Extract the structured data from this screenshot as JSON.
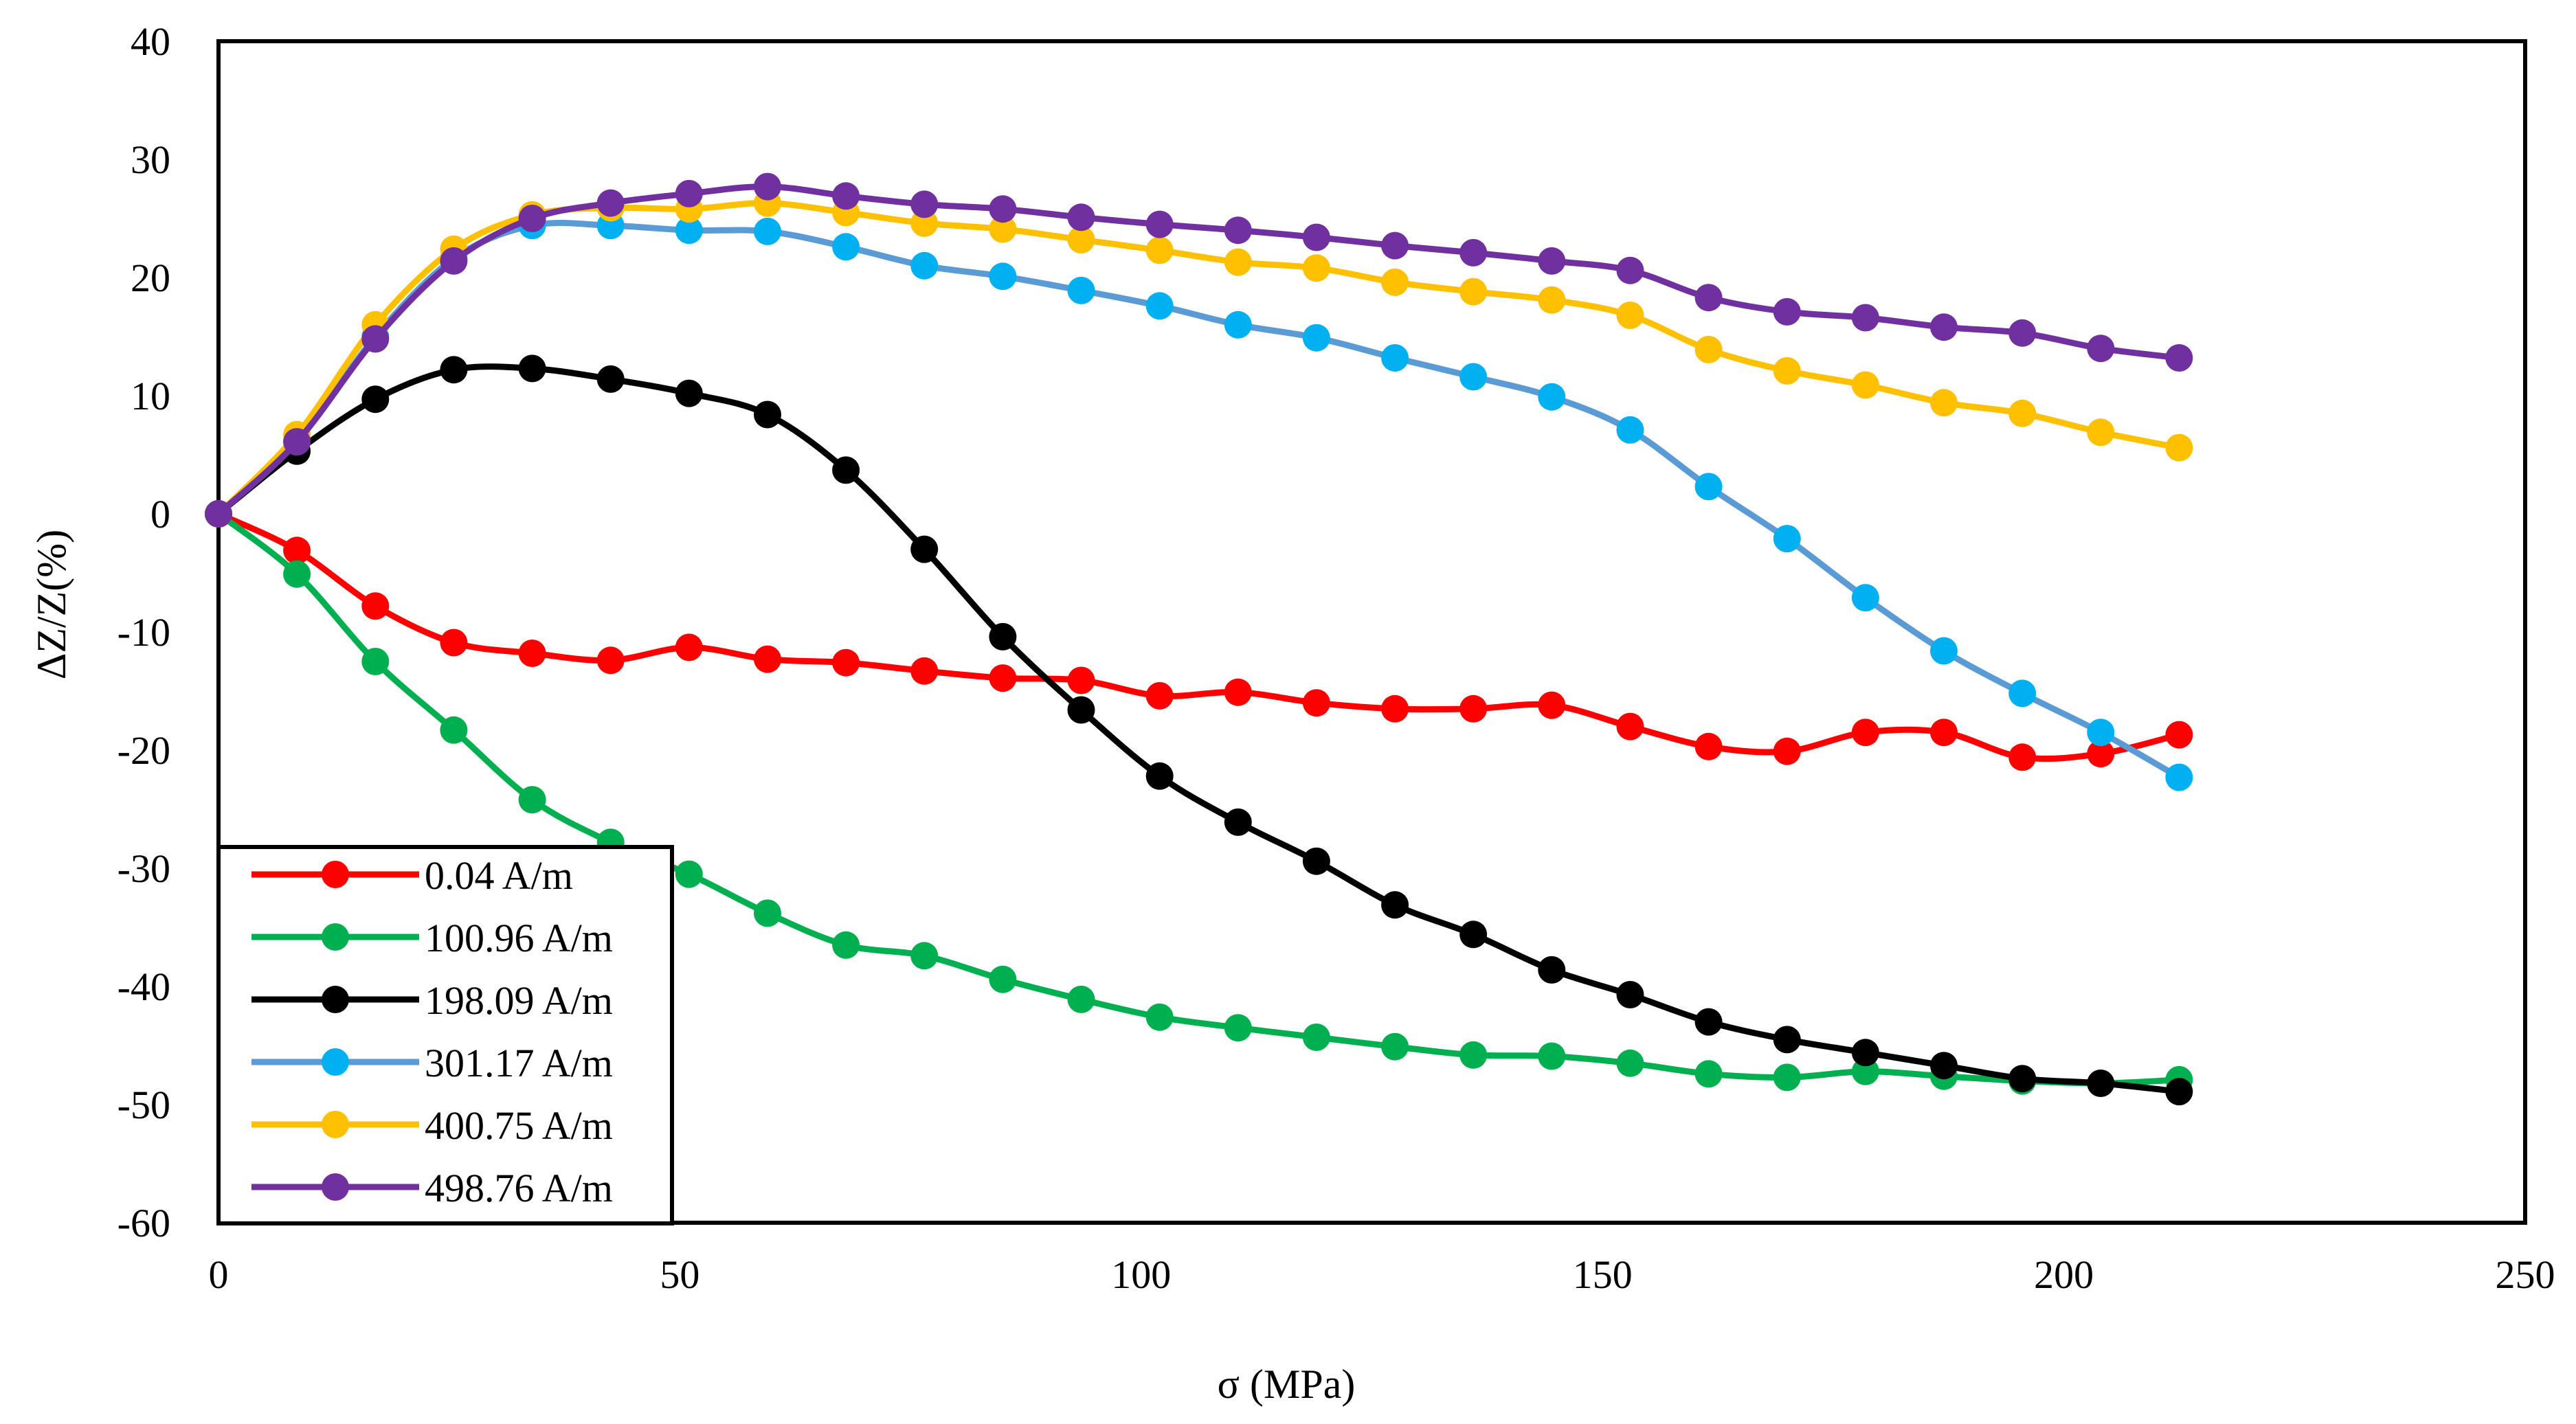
{
  "chart_data": {
    "type": "line",
    "title": "",
    "xlabel": "σ (MPa)",
    "ylabel": "ΔZ/Z(%)",
    "xlim": [
      0,
      250
    ],
    "ylim": [
      -60,
      40
    ],
    "xticks": [
      0,
      50,
      100,
      150,
      200,
      250
    ],
    "yticks": [
      -60,
      -50,
      -40,
      -30,
      -20,
      -10,
      0,
      10,
      20,
      30,
      40
    ],
    "grid": false,
    "legend_position": "bottom-left",
    "x": [
      0,
      8.5,
      17,
      25.5,
      34,
      42.5,
      51,
      59.5,
      68,
      76.5,
      85,
      93.5,
      102,
      110.5,
      119,
      127.5,
      136,
      144.5,
      153,
      161.5,
      170,
      178.5,
      187,
      195.5,
      204,
      212.5
    ],
    "series": [
      {
        "name": "0.04 A/m",
        "color": "#ff0000",
        "line_color": "#ff0000",
        "values": [
          0,
          -3.1,
          -7.8,
          -10.9,
          -11.8,
          -12.4,
          -11.3,
          -12.3,
          -12.6,
          -13.3,
          -13.9,
          -14.1,
          -15.4,
          -15.1,
          -16.0,
          -16.5,
          -16.5,
          -16.2,
          -18.0,
          -19.7,
          -20.1,
          -18.5,
          -18.5,
          -20.6,
          -20.3,
          -18.7
        ]
      },
      {
        "name": "100.96 A/m",
        "color": "#00b050",
        "line_color": "#00b050",
        "values": [
          0,
          -5.1,
          -12.5,
          -18.3,
          -24.2,
          -27.8,
          -30.5,
          -33.8,
          -36.5,
          -37.4,
          -39.4,
          -41.1,
          -42.6,
          -43.5,
          -44.3,
          -45.1,
          -45.8,
          -45.9,
          -46.5,
          -47.4,
          -47.7,
          -47.2,
          -47.6,
          -48.0,
          -48.2,
          -47.9
        ]
      },
      {
        "name": "198.09 A/m",
        "color": "#000000",
        "line_color": "#000000",
        "values": [
          0,
          5.3,
          9.7,
          12.2,
          12.3,
          11.4,
          10.2,
          8.4,
          3.7,
          -3.0,
          -10.4,
          -16.6,
          -22.2,
          -26.1,
          -29.4,
          -33.1,
          -35.6,
          -38.6,
          -40.7,
          -43.0,
          -44.5,
          -45.6,
          -46.7,
          -47.8,
          -48.2,
          -48.9
        ]
      },
      {
        "name": "301.17 A/m",
        "color": "#00b0f0",
        "line_color": "#5b9bd5",
        "values": [
          0,
          6.1,
          15.0,
          21.6,
          24.4,
          24.4,
          24.0,
          23.9,
          22.6,
          21.0,
          20.1,
          18.9,
          17.6,
          16.0,
          14.9,
          13.2,
          11.6,
          9.9,
          7.1,
          2.3,
          -2.1,
          -7.1,
          -11.6,
          -15.2,
          -18.5,
          -22.3
        ]
      },
      {
        "name": "400.75 A/m",
        "color": "#ffc000",
        "line_color": "#ffc000",
        "values": [
          0,
          6.7,
          16.0,
          22.4,
          25.3,
          25.9,
          25.8,
          26.3,
          25.5,
          24.6,
          24.1,
          23.2,
          22.3,
          21.3,
          20.8,
          19.6,
          18.8,
          18.1,
          16.8,
          13.9,
          12.1,
          10.9,
          9.4,
          8.5,
          6.9,
          5.6
        ]
      },
      {
        "name": "498.76 A/m",
        "color": "#7030a0",
        "line_color": "#7030a0",
        "values": [
          0,
          6.1,
          14.8,
          21.4,
          25.0,
          26.3,
          27.1,
          27.7,
          26.9,
          26.2,
          25.8,
          25.1,
          24.5,
          24.0,
          23.4,
          22.7,
          22.1,
          21.4,
          20.6,
          18.3,
          17.1,
          16.6,
          15.8,
          15.3,
          14.0,
          13.2
        ]
      }
    ]
  }
}
